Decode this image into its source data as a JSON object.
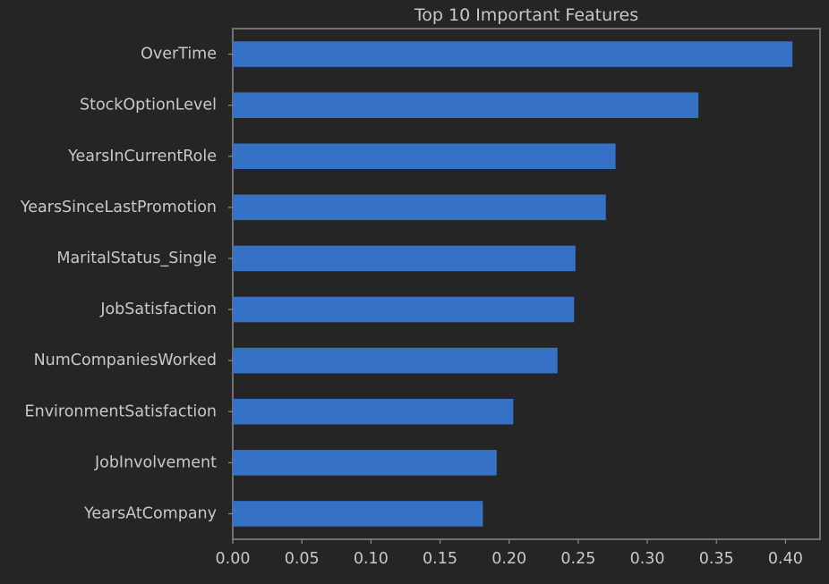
{
  "chart_data": {
    "type": "bar",
    "orientation": "horizontal",
    "title": "Top 10 Important Features",
    "xlabel": "",
    "ylabel": "",
    "categories": [
      "OverTime",
      "StockOptionLevel",
      "YearsInCurrentRole",
      "YearsSinceLastPromotion",
      "MaritalStatus_Single",
      "JobSatisfaction",
      "NumCompaniesWorked",
      "EnvironmentSatisfaction",
      "JobInvolvement",
      "YearsAtCompany"
    ],
    "values": [
      0.405,
      0.337,
      0.277,
      0.27,
      0.248,
      0.247,
      0.235,
      0.203,
      0.191,
      0.181
    ],
    "xlim": [
      0,
      0.425
    ],
    "xticks": [
      "0.00",
      "0.05",
      "0.10",
      "0.15",
      "0.20",
      "0.25",
      "0.30",
      "0.35",
      "0.40"
    ],
    "grid": false,
    "legend": "none",
    "colors": {
      "bar": "#3572c6",
      "background": "#252525",
      "axes": "#8a8a8a",
      "text": "#c8c8c8"
    }
  }
}
